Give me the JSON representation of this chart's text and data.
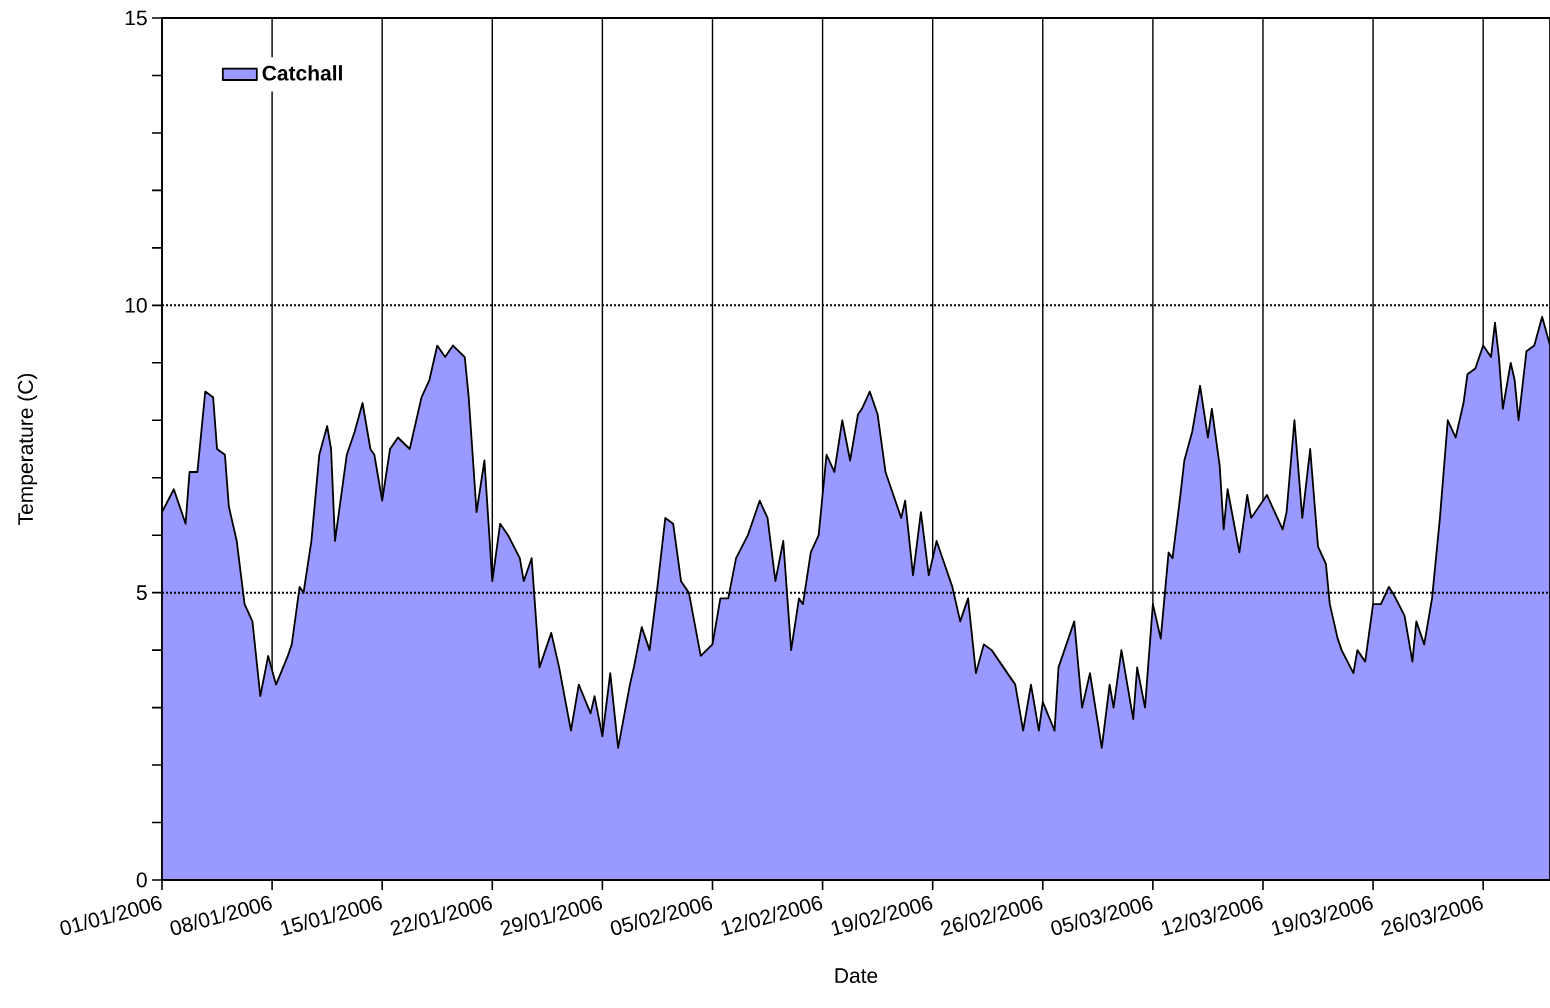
{
  "chart_data": {
    "type": "area",
    "xlabel": "Date",
    "ylabel": "Temperature (C)",
    "xlim": [
      "2006-01-01",
      "2006-03-30T06:00"
    ],
    "xticks": [
      {
        "value": "2006-01-01",
        "label": "01/01/2006"
      },
      {
        "value": "2006-01-08",
        "label": "08/01/2006"
      },
      {
        "value": "2006-01-15",
        "label": "15/01/2006"
      },
      {
        "value": "2006-01-22",
        "label": "22/01/2006"
      },
      {
        "value": "2006-01-29",
        "label": "29/01/2006"
      },
      {
        "value": "2006-02-05",
        "label": "05/02/2006"
      },
      {
        "value": "2006-02-12",
        "label": "12/02/2006"
      },
      {
        "value": "2006-02-19",
        "label": "19/02/2006"
      },
      {
        "value": "2006-02-26",
        "label": "26/02/2006"
      },
      {
        "value": "2006-03-05",
        "label": "05/03/2006"
      },
      {
        "value": "2006-03-12",
        "label": "12/03/2006"
      },
      {
        "value": "2006-03-19",
        "label": "19/03/2006"
      },
      {
        "value": "2006-03-26",
        "label": "26/03/2006"
      }
    ],
    "ylim": [
      0,
      15
    ],
    "yticks": [
      0,
      {
        "value": 1,
        "label": null
      },
      {
        "value": 2,
        "label": null
      },
      {
        "value": 3,
        "label": null
      },
      {
        "value": 4,
        "label": null
      },
      5,
      {
        "value": 6,
        "label": null
      },
      {
        "value": 7,
        "label": null
      },
      {
        "value": 8,
        "label": null
      },
      {
        "value": 9,
        "label": null
      },
      10,
      {
        "value": 11,
        "label": null
      },
      {
        "value": 12,
        "label": null
      },
      {
        "value": 13,
        "label": null
      },
      {
        "value": 14,
        "label": null
      },
      15
    ],
    "grid": true,
    "legend": "top left",
    "x": [
      "2006-01-01T00:00",
      "2006-01-01T18:00",
      "2006-01-02T12:00",
      "2006-01-02T18:00",
      "2006-01-03T06:00",
      "2006-01-03T18:00",
      "2006-01-04T06:00",
      "2006-01-04T12:00",
      "2006-01-05T00:00",
      "2006-01-05T06:00",
      "2006-01-05T18:00",
      "2006-01-06T06:00",
      "2006-01-06T18:00",
      "2006-01-07T06:00",
      "2006-01-07T18:00",
      "2006-01-08T06:00",
      "2006-01-09T00:00",
      "2006-01-09T06:00",
      "2006-01-09T18:00",
      "2006-01-10T00:00",
      "2006-01-10T12:00",
      "2006-01-11T00:00",
      "2006-01-11T12:00",
      "2006-01-11T18:00",
      "2006-01-12T00:00",
      "2006-01-12T18:00",
      "2006-01-13T06:00",
      "2006-01-13T18:00",
      "2006-01-14T06:00",
      "2006-01-14T12:00",
      "2006-01-15T00:00",
      "2006-01-15T12:00",
      "2006-01-16T00:00",
      "2006-01-16T18:00",
      "2006-01-17T12:00",
      "2006-01-18T00:00",
      "2006-01-18T12:00",
      "2006-01-19T00:00",
      "2006-01-19T12:00",
      "2006-01-20T06:00",
      "2006-01-20T12:00",
      "2006-01-21T00:00",
      "2006-01-21T12:00",
      "2006-01-22T00:00",
      "2006-01-22T12:00",
      "2006-01-23T00:00",
      "2006-01-23T18:00",
      "2006-01-24T00:00",
      "2006-01-24T12:00",
      "2006-01-25T00:00",
      "2006-01-25T18:00",
      "2006-01-26T06:00",
      "2006-01-27T00:00",
      "2006-01-27T12:00",
      "2006-01-28T06:00",
      "2006-01-28T12:00",
      "2006-01-29T00:00",
      "2006-01-29T12:00",
      "2006-01-30T00:00",
      "2006-01-30T18:00",
      "2006-01-31T00:00",
      "2006-01-31T12:00",
      "2006-02-01T00:00",
      "2006-02-01T12:00",
      "2006-02-02T00:00",
      "2006-02-02T12:00",
      "2006-02-03T00:00",
      "2006-02-03T12:00",
      "2006-02-04T06:00",
      "2006-02-05T00:00",
      "2006-02-05T12:00",
      "2006-02-06T00:00",
      "2006-02-06T12:00",
      "2006-02-07T06:00",
      "2006-02-07T18:00",
      "2006-02-08T00:00",
      "2006-02-08T12:00",
      "2006-02-09T00:00",
      "2006-02-09T12:00",
      "2006-02-10T00:00",
      "2006-02-10T12:00",
      "2006-02-10T18:00",
      "2006-02-11T06:00",
      "2006-02-11T18:00",
      "2006-02-12T06:00",
      "2006-02-12T18:00",
      "2006-02-13T06:00",
      "2006-02-13T18:00",
      "2006-02-14T06:00",
      "2006-02-14T12:00",
      "2006-02-15T00:00",
      "2006-02-15T12:00",
      "2006-02-16T00:00",
      "2006-02-16T12:00",
      "2006-02-17T00:00",
      "2006-02-17T06:00",
      "2006-02-17T18:00",
      "2006-02-18T06:00",
      "2006-02-18T18:00",
      "2006-02-19T06:00",
      "2006-02-19T18:00",
      "2006-02-20T06:00",
      "2006-02-20T18:00",
      "2006-02-21T06:00",
      "2006-02-21T18:00",
      "2006-02-22T06:00",
      "2006-02-22T18:00",
      "2006-02-23T12:00",
      "2006-02-24T00:00",
      "2006-02-24T06:00",
      "2006-02-24T18:00",
      "2006-02-25T06:00",
      "2006-02-25T18:00",
      "2006-02-26T00:00",
      "2006-02-26T18:00",
      "2006-02-27T00:00",
      "2006-02-28T00:00",
      "2006-02-28T12:00",
      "2006-03-01T00:00",
      "2006-03-01T18:00",
      "2006-03-02T06:00",
      "2006-03-02T12:00",
      "2006-03-03T00:00",
      "2006-03-03T18:00",
      "2006-03-04T00:00",
      "2006-03-04T12:00",
      "2006-03-05T00:00",
      "2006-03-05T12:00",
      "2006-03-06T00:00",
      "2006-03-06T06:00",
      "2006-03-06T18:00",
      "2006-03-07T00:00",
      "2006-03-07T12:00",
      "2006-03-08T00:00",
      "2006-03-08T12:00",
      "2006-03-08T18:00",
      "2006-03-09T06:00",
      "2006-03-09T12:00",
      "2006-03-09T18:00",
      "2006-03-10T12:00",
      "2006-03-11T00:00",
      "2006-03-11T06:00",
      "2006-03-12T06:00",
      "2006-03-12T18:00",
      "2006-03-13T06:00",
      "2006-03-13T12:00",
      "2006-03-14T00:00",
      "2006-03-14T12:00",
      "2006-03-15T00:00",
      "2006-03-15T12:00",
      "2006-03-16T00:00",
      "2006-03-16T06:00",
      "2006-03-16T18:00",
      "2006-03-17T00:00",
      "2006-03-17T18:00",
      "2006-03-18T00:00",
      "2006-03-18T12:00",
      "2006-03-19T00:00",
      "2006-03-19T12:00",
      "2006-03-20T00:00",
      "2006-03-20T06:00",
      "2006-03-21T00:00",
      "2006-03-21T12:00",
      "2006-03-21T18:00",
      "2006-03-22T06:00",
      "2006-03-22T18:00",
      "2006-03-23T06:00",
      "2006-03-23T18:00",
      "2006-03-24T06:00",
      "2006-03-24T18:00",
      "2006-03-25T00:00",
      "2006-03-25T12:00",
      "2006-03-26T00:00",
      "2006-03-26T12:00",
      "2006-03-26T18:00",
      "2006-03-27T00:00",
      "2006-03-27T06:00",
      "2006-03-27T18:00",
      "2006-03-28T00:00",
      "2006-03-28T06:00",
      "2006-03-28T18:00",
      "2006-03-29T06:00",
      "2006-03-29T18:00",
      "2006-03-30T06:00"
    ],
    "series": [
      {
        "name": "Catchall",
        "color": "#9999ff",
        "values": [
          6.4,
          6.8,
          6.2,
          7.1,
          7.1,
          8.5,
          8.4,
          7.5,
          7.4,
          6.5,
          5.9,
          4.8,
          4.5,
          3.2,
          3.9,
          3.4,
          3.9,
          4.1,
          5.1,
          5.0,
          5.9,
          7.4,
          7.9,
          7.5,
          5.9,
          7.4,
          7.8,
          8.3,
          7.5,
          7.4,
          6.6,
          7.5,
          7.7,
          7.5,
          8.4,
          8.7,
          9.3,
          9.1,
          9.3,
          9.1,
          8.4,
          6.4,
          7.3,
          5.2,
          6.2,
          6.0,
          5.6,
          5.2,
          5.6,
          3.7,
          4.3,
          3.7,
          2.6,
          3.4,
          2.9,
          3.2,
          2.5,
          3.6,
          2.3,
          3.4,
          3.7,
          4.4,
          4.0,
          5.1,
          6.3,
          6.2,
          5.2,
          5.0,
          3.9,
          4.1,
          4.9,
          4.9,
          5.6,
          6.0,
          6.4,
          6.6,
          6.3,
          5.2,
          5.9,
          4.0,
          4.9,
          4.8,
          5.7,
          6.0,
          7.4,
          7.1,
          8.0,
          7.3,
          8.1,
          8.2,
          8.5,
          8.1,
          7.1,
          6.7,
          6.3,
          6.6,
          5.3,
          6.4,
          5.3,
          5.9,
          5.5,
          5.1,
          4.5,
          4.9,
          3.6,
          4.1,
          4.0,
          3.7,
          3.5,
          3.4,
          2.6,
          3.4,
          2.6,
          3.1,
          2.6,
          3.7,
          4.5,
          3.0,
          3.6,
          2.3,
          3.4,
          3.0,
          4.0,
          2.8,
          3.7,
          3.0,
          4.8,
          4.2,
          5.7,
          5.6,
          6.7,
          7.3,
          7.8,
          8.6,
          7.7,
          8.2,
          7.2,
          6.1,
          6.8,
          5.7,
          6.7,
          6.3,
          6.7,
          6.4,
          6.1,
          6.4,
          8.0,
          6.3,
          7.5,
          5.8,
          5.5,
          4.8,
          4.2,
          4.0,
          3.6,
          4.0,
          3.8,
          4.8,
          4.8,
          5.1,
          5.0,
          4.6,
          3.8,
          4.5,
          4.1,
          4.9,
          6.3,
          8.0,
          7.7,
          8.3,
          8.8,
          8.9,
          9.3,
          9.1,
          9.7,
          9.1,
          8.2,
          9.0,
          8.7,
          8.0,
          9.2,
          9.3,
          9.8,
          9.3
        ]
      }
    ]
  }
}
